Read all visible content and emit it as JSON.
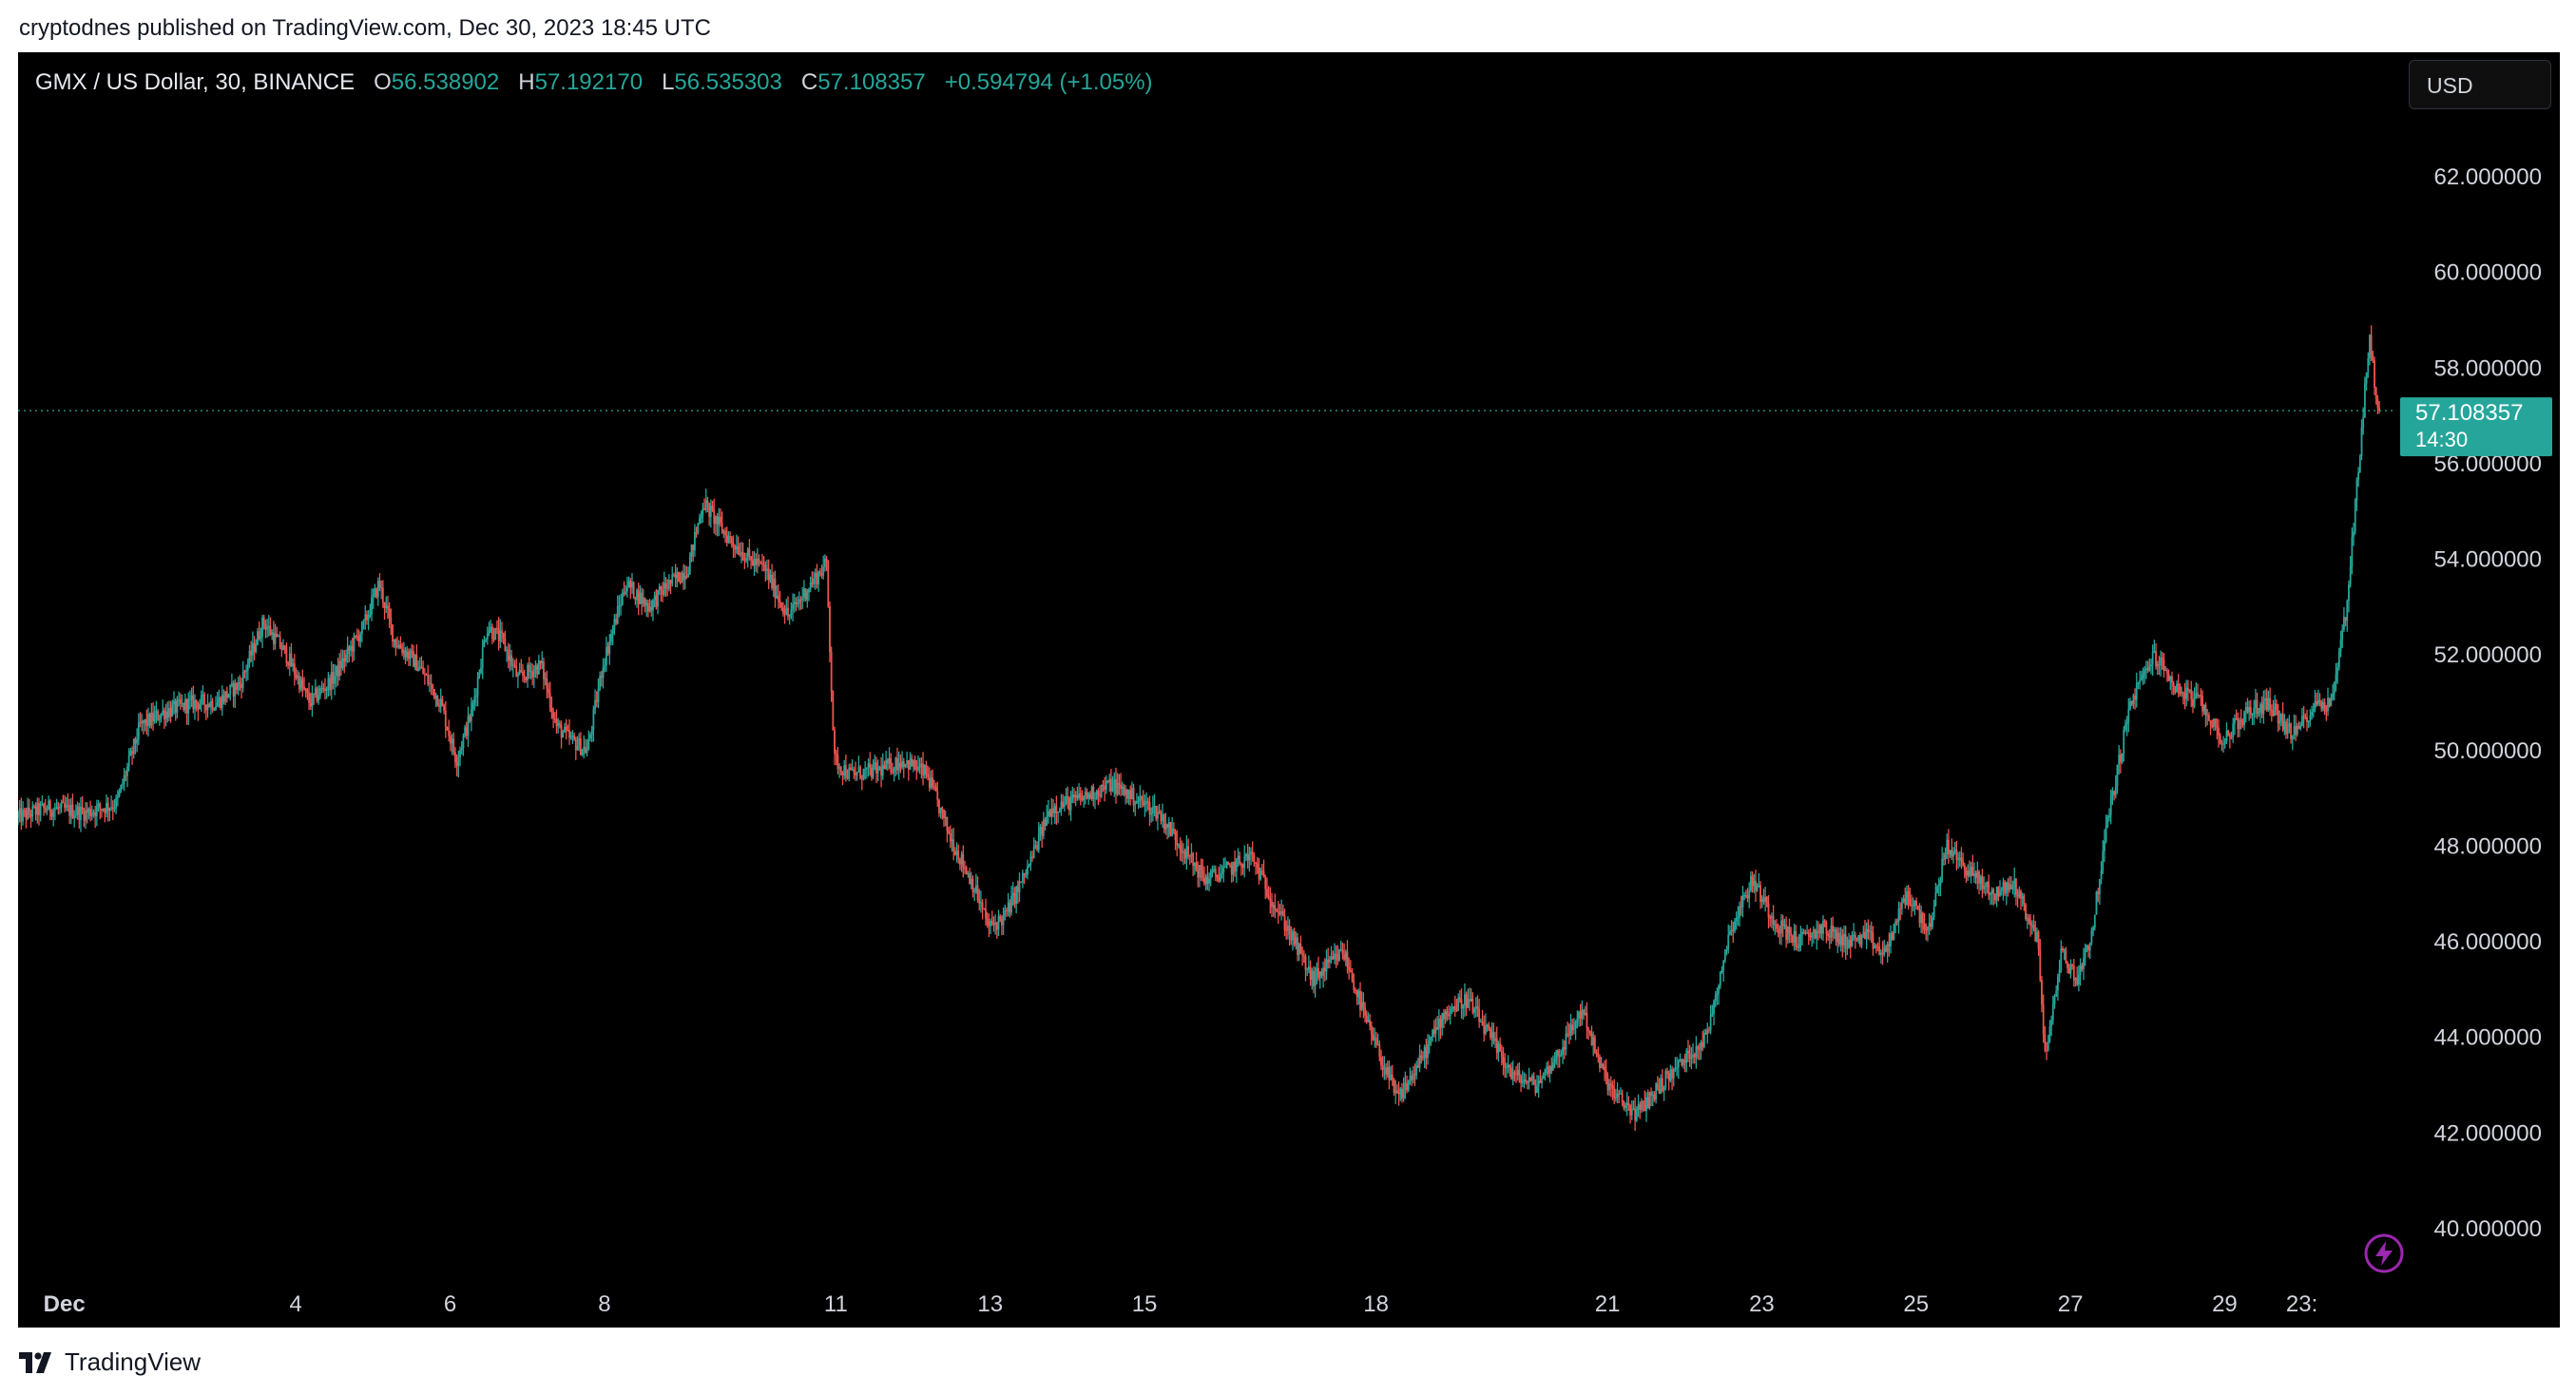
{
  "header": {
    "published_line": "cryptodnes published on TradingView.com, Dec 30, 2023 18:45 UTC"
  },
  "legend": {
    "symbol": "GMX / US Dollar, 30, BINANCE",
    "open_label": "O",
    "open": "56.538902",
    "high_label": "H",
    "high": "57.192170",
    "low_label": "L",
    "low": "56.535303",
    "close_label": "C",
    "close": "57.108357",
    "change": "+0.594794 (+1.05%)"
  },
  "currency_button": "USD",
  "price_tag": {
    "price": "57.108357",
    "countdown": "14:30"
  },
  "footer": {
    "brand": "TradingView"
  },
  "colors": {
    "up": "#26a69a",
    "down": "#ef5350",
    "background": "#000000",
    "axis_text": "#d1d4dc"
  },
  "icons": {
    "bolt": "lightning-bolt-icon",
    "logo": "tradingview-logo-icon"
  },
  "chart_data": {
    "type": "candlestick",
    "title": "GMX / US Dollar, 30, BINANCE",
    "timeframe": "30 minutes",
    "ylim": [
      39.5,
      64.0
    ],
    "y_ticks": [
      40,
      42,
      44,
      46,
      48,
      50,
      52,
      54,
      56,
      58,
      60,
      62
    ],
    "y_tick_labels": [
      "40.000000",
      "42.000000",
      "44.000000",
      "46.000000",
      "48.000000",
      "50.000000",
      "52.000000",
      "54.000000",
      "56.000000",
      "58.000000",
      "60.000000",
      "62.000000"
    ],
    "x_tick_labels": [
      "Dec",
      "4",
      "6",
      "8",
      "11",
      "13",
      "15",
      "18",
      "21",
      "23",
      "25",
      "27",
      "29",
      "23:"
    ],
    "x_tick_days": [
      1,
      4,
      6,
      8,
      11,
      13,
      15,
      18,
      21,
      23,
      25,
      27,
      29,
      30
    ],
    "x_range_days": [
      0.4,
      31.2
    ],
    "last_price": 57.108357,
    "price_path": [
      [
        0.4,
        48.6
      ],
      [
        0.8,
        48.8
      ],
      [
        1.3,
        48.7
      ],
      [
        1.7,
        48.9
      ],
      [
        2.0,
        50.5
      ],
      [
        2.3,
        50.8
      ],
      [
        2.7,
        51.0
      ],
      [
        3.0,
        51.0
      ],
      [
        3.3,
        51.4
      ],
      [
        3.6,
        52.7
      ],
      [
        3.9,
        52.0
      ],
      [
        4.2,
        51.0
      ],
      [
        4.5,
        51.5
      ],
      [
        4.9,
        52.6
      ],
      [
        5.1,
        53.5
      ],
      [
        5.3,
        52.3
      ],
      [
        5.6,
        51.8
      ],
      [
        5.9,
        51.0
      ],
      [
        6.1,
        49.8
      ],
      [
        6.3,
        50.8
      ],
      [
        6.5,
        52.6
      ],
      [
        6.7,
        52.3
      ],
      [
        6.9,
        51.5
      ],
      [
        7.2,
        51.8
      ],
      [
        7.4,
        50.5
      ],
      [
        7.6,
        50.2
      ],
      [
        7.8,
        50.0
      ],
      [
        8.0,
        51.8
      ],
      [
        8.3,
        53.5
      ],
      [
        8.6,
        53.0
      ],
      [
        8.8,
        53.4
      ],
      [
        9.1,
        53.8
      ],
      [
        9.3,
        55.2
      ],
      [
        9.6,
        54.5
      ],
      [
        9.9,
        54.0
      ],
      [
        10.1,
        53.8
      ],
      [
        10.4,
        52.8
      ],
      [
        10.7,
        53.5
      ],
      [
        10.9,
        53.9
      ],
      [
        11.0,
        49.8
      ],
      [
        11.2,
        49.5
      ],
      [
        11.6,
        49.6
      ],
      [
        11.9,
        49.8
      ],
      [
        12.2,
        49.5
      ],
      [
        12.5,
        48.2
      ],
      [
        12.8,
        47.2
      ],
      [
        13.0,
        46.3
      ],
      [
        13.2,
        46.5
      ],
      [
        13.5,
        47.5
      ],
      [
        13.8,
        48.8
      ],
      [
        14.2,
        49.0
      ],
      [
        14.6,
        49.3
      ],
      [
        14.9,
        49.0
      ],
      [
        15.2,
        48.7
      ],
      [
        15.5,
        48.0
      ],
      [
        15.8,
        47.3
      ],
      [
        16.1,
        47.5
      ],
      [
        16.4,
        47.8
      ],
      [
        16.7,
        46.8
      ],
      [
        16.9,
        46.2
      ],
      [
        17.2,
        45.2
      ],
      [
        17.6,
        45.8
      ],
      [
        17.9,
        44.3
      ],
      [
        18.1,
        43.5
      ],
      [
        18.3,
        42.7
      ],
      [
        18.6,
        43.5
      ],
      [
        18.9,
        44.5
      ],
      [
        19.2,
        44.8
      ],
      [
        19.5,
        44.0
      ],
      [
        19.8,
        43.2
      ],
      [
        20.1,
        43.0
      ],
      [
        20.4,
        43.7
      ],
      [
        20.7,
        44.6
      ],
      [
        20.9,
        43.5
      ],
      [
        21.1,
        42.8
      ],
      [
        21.4,
        42.4
      ],
      [
        21.7,
        43.0
      ],
      [
        22.0,
        43.5
      ],
      [
        22.3,
        44.0
      ],
      [
        22.6,
        46.2
      ],
      [
        22.9,
        47.3
      ],
      [
        23.2,
        46.4
      ],
      [
        23.5,
        46.0
      ],
      [
        23.8,
        46.3
      ],
      [
        24.1,
        46.0
      ],
      [
        24.4,
        46.1
      ],
      [
        24.6,
        45.7
      ],
      [
        24.9,
        47.0
      ],
      [
        25.2,
        46.2
      ],
      [
        25.4,
        48.0
      ],
      [
        25.7,
        47.5
      ],
      [
        26.0,
        47.0
      ],
      [
        26.3,
        47.2
      ],
      [
        26.6,
        46.0
      ],
      [
        26.7,
        43.5
      ],
      [
        26.9,
        45.8
      ],
      [
        27.1,
        45.2
      ],
      [
        27.3,
        46.2
      ],
      [
        27.5,
        48.5
      ],
      [
        27.8,
        51.0
      ],
      [
        28.1,
        52.0
      ],
      [
        28.4,
        51.3
      ],
      [
        28.7,
        51.0
      ],
      [
        29.0,
        50.2
      ],
      [
        29.3,
        50.8
      ],
      [
        29.6,
        51.0
      ],
      [
        29.9,
        50.3
      ],
      [
        30.2,
        51.0
      ],
      [
        30.4,
        51.0
      ],
      [
        30.6,
        53.0
      ],
      [
        30.8,
        56.8
      ],
      [
        30.9,
        58.7
      ],
      [
        31.0,
        57.1
      ]
    ]
  }
}
